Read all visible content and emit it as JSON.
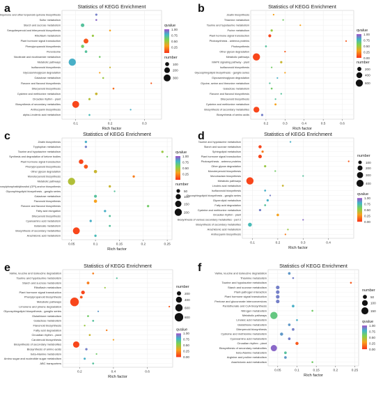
{
  "chart_data": [
    {
      "panel": "a",
      "type": "scatter",
      "title": "Statistics of KEGG Enrichment",
      "xlabel": "Rich factor",
      "xticks": [
        0.1,
        0.2,
        0.3
      ],
      "xlim": [
        0.06,
        0.35
      ],
      "legend_q_title": "qvalue",
      "legend_q_ticks": [
        "1.00",
        "0.75",
        "0.50",
        "0.25"
      ],
      "legend_n_title": "number",
      "legend_n_ticks": [
        "100",
        "200",
        "300"
      ],
      "categories": [
        "Ubiquinone and other terpenoid-quinone biosynthesis",
        "Sulfur metabolism",
        "Starch and sucrose metabolism",
        "Sesquiterpenoid and triterpenoid biosynthesis",
        "Riboflavin metabolism",
        "Plant hormone signal transduction",
        "Phenylpropanoid biosynthesis",
        "Peroxisome",
        "Nicotinate and nicotinamide metabolism",
        "Metabolic pathways",
        "Isoflavonoid biosynthesis",
        "Glycosaminoglycan degradation",
        "Galactose metabolism",
        "Flavone and flavonol biosynthesis",
        "Diterpenoid biosynthesis",
        "Cysteine and methionine metabolism",
        "Circadian rhythm - plant",
        "Biosynthesis of secondary metabolites",
        "Anthocyanin biosynthesis",
        "alpha-Linolenic acid metabolism"
      ],
      "x": [
        0.16,
        0.16,
        0.12,
        0.2,
        0.15,
        0.13,
        0.12,
        0.13,
        0.17,
        0.09,
        0.2,
        0.17,
        0.18,
        0.32,
        0.21,
        0.16,
        0.14,
        0.1,
        0.26,
        0.14
      ],
      "q": [
        0.9,
        0.95,
        0.7,
        0.3,
        0.5,
        0.1,
        0.6,
        0.7,
        0.6,
        0.8,
        0.4,
        0.3,
        0.5,
        0.1,
        0.15,
        0.4,
        0.45,
        0.05,
        0.8,
        0.75
      ],
      "n": [
        30,
        20,
        80,
        20,
        30,
        150,
        60,
        40,
        20,
        330,
        10,
        15,
        20,
        10,
        20,
        40,
        30,
        300,
        10,
        20
      ]
    },
    {
      "panel": "b",
      "type": "scatter",
      "title": "Statistics of KEGG Enrichment",
      "xlabel": "Rich factor",
      "xticks": [
        0.2,
        0.3,
        0.4,
        0.5,
        0.6
      ],
      "xlim": [
        0.12,
        0.66
      ],
      "legend_q_title": "qvalue",
      "legend_q_ticks": [
        "1.00",
        "0.75",
        "0.50",
        "0.25",
        "0.00"
      ],
      "legend_n_title": "number",
      "legend_n_ticks": [
        "200",
        "400",
        "600"
      ],
      "categories": [
        "Zeatin biosynthesis",
        "Thiamine metabolism",
        "Taurine and hypotaurine metabolism",
        "Purine metabolism",
        "Plant hormone signal transduction",
        "Photosynthesis - antenna proteins",
        "Photosynthesis",
        "Other glycan degradation",
        "Metabolic pathways",
        "MAPK signaling pathway - plant",
        "Isoflavonoid biosynthesis",
        "Glycosphingolipid biosynthesis - ganglio series",
        "Glycosaminoglycan degradation",
        "Glycine, serine and threonine metabolism",
        "Galactose metabolism",
        "Flavone and flavonol biosynthesis",
        "Diterpenoid biosynthesis",
        "Cysteine and methionine metabolism",
        "Biosynthesis of secondary metabolites",
        "Biosynthesis of amino acids"
      ],
      "x": [
        0.24,
        0.29,
        0.38,
        0.23,
        0.22,
        0.62,
        0.2,
        0.3,
        0.15,
        0.28,
        0.23,
        0.3,
        0.26,
        0.22,
        0.23,
        0.28,
        0.25,
        0.25,
        0.15,
        0.18
      ],
      "q": [
        0.3,
        0.6,
        0.3,
        0.5,
        0.05,
        0.1,
        0.7,
        0.1,
        0.05,
        0.4,
        0.6,
        0.3,
        0.8,
        0.7,
        0.6,
        0.7,
        0.7,
        0.3,
        0.05,
        0.9
      ],
      "n": [
        30,
        20,
        20,
        60,
        100,
        20,
        40,
        20,
        620,
        60,
        15,
        20,
        20,
        30,
        40,
        30,
        20,
        50,
        400,
        60
      ]
    },
    {
      "panel": "c",
      "type": "scatter",
      "title": "Statistics of KEGG Enrichment",
      "xlabel": "Rich factor",
      "xticks": [
        0.05,
        0.1,
        0.15,
        0.2,
        0.25
      ],
      "xlim": [
        0.03,
        0.26
      ],
      "legend_q_title": "qvalue",
      "legend_q_ticks": [
        "1.00",
        "0.75",
        "0.50",
        "0.25"
      ],
      "legend_n_title": "number",
      "legend_n_ticks": [
        "50",
        "100",
        "150",
        "200"
      ],
      "categories": [
        "Zeatin biosynthesis",
        "Tryptophan metabolism",
        "Taurine and hypotaurine metabolism",
        "Synthesis and degradation of ketone bodies",
        "Plant hormone signal transduction",
        "Phenylpropanoid biosynthesis",
        "Other glycan degradation",
        "Monoterpenoid biosynthesis",
        "Metabolic pathways",
        "Glycosylphosphatidylinositol (GPI)-anchor biosynthesis",
        "Glycosphingolipid biosynthesis - ganglio series",
        "Galactose metabolism",
        "Flavonoid biosynthesis",
        "Flavone and flavonol biosynthesis",
        "Fatty acid elongation",
        "Diterpenoid biosynthesis",
        "Cyanoamino acid metabolism",
        "Butanoate metabolism",
        "Biosynthesis of secondary metabolites",
        "Arachidonic acid metabolism"
      ],
      "x": [
        0.08,
        0.08,
        0.24,
        0.25,
        0.07,
        0.08,
        0.1,
        0.18,
        0.05,
        0.13,
        0.14,
        0.1,
        0.1,
        0.21,
        0.12,
        0.13,
        0.09,
        0.13,
        0.06,
        0.1
      ],
      "q": [
        0.8,
        0.9,
        0.5,
        0.6,
        0.05,
        0.1,
        0.4,
        0.2,
        0.45,
        0.4,
        0.7,
        0.7,
        0.3,
        0.6,
        0.8,
        0.7,
        0.8,
        0.7,
        0.05,
        0.75
      ],
      "n": [
        20,
        20,
        20,
        10,
        80,
        60,
        40,
        20,
        200,
        20,
        10,
        30,
        40,
        20,
        20,
        15,
        20,
        15,
        180,
        20
      ]
    },
    {
      "panel": "d",
      "type": "scatter",
      "title": "Statistics of KEGG Enrichment",
      "xlabel": "Rich factor",
      "xticks": [
        0.1,
        0.2,
        0.3,
        0.4
      ],
      "xlim": [
        0.06,
        0.5
      ],
      "legend_n_title": "number",
      "legend_n_ticks": [
        "100",
        "200",
        "300",
        "400"
      ],
      "legend_q_title": "qvalue",
      "legend_q_ticks": [
        "1.00",
        "0.75",
        "0.50",
        "0.25",
        "0.00"
      ],
      "categories": [
        "Taurine and hypotaurine metabolism",
        "Starch and sucrose metabolism",
        "Sphingolipid metabolism",
        "Plant hormone signal transduction",
        "Photosynthesis - antenna proteins",
        "Other glycan degradation",
        "Monoterpenoid biosynthesis",
        "Monobactam biosynthesis",
        "Metabolic pathways",
        "Linoleic acid metabolism",
        "Isoflavonoid biosynthesis",
        "Glycosphingolipid biosynthesis - ganglio series",
        "Glycerolipid metabolism",
        "Fatty acid degradation",
        "Cysteine and methionine metabolism",
        "Circadian rhythm - plant",
        "Biosynthesis of various secondary metabolites - part 2",
        "Biosynthesis of secondary metabolites",
        "Arachidonic acid metabolism",
        "Anthocyanin biosynthesis"
      ],
      "x": [
        0.25,
        0.13,
        0.14,
        0.13,
        0.48,
        0.15,
        0.19,
        0.3,
        0.09,
        0.22,
        0.15,
        0.17,
        0.16,
        0.15,
        0.13,
        0.2,
        0.3,
        0.09,
        0.24,
        0.23
      ],
      "q": [
        0.8,
        0.05,
        0.2,
        0.05,
        0.1,
        0.5,
        0.6,
        0.7,
        0.05,
        0.4,
        0.8,
        0.9,
        0.8,
        0.7,
        0.9,
        0.3,
        0.95,
        0.75,
        0.5,
        0.2
      ],
      "n": [
        20,
        80,
        40,
        100,
        20,
        40,
        20,
        15,
        420,
        30,
        30,
        20,
        40,
        30,
        40,
        50,
        10,
        120,
        20,
        15
      ]
    },
    {
      "panel": "e",
      "type": "scatter",
      "title": "Statistics of KEGG Enrichment",
      "xlabel": "Rich factor",
      "xticks": [
        0.2,
        0.4,
        0.6
      ],
      "xlim": [
        0.1,
        0.75
      ],
      "legend_n_title": "number",
      "legend_n_ticks": [
        "200",
        "400",
        "600",
        "800"
      ],
      "legend_q_title": "qvalue",
      "legend_q_ticks": [
        "1.00",
        "0.75",
        "0.50",
        "0.25",
        "0.00"
      ],
      "categories": [
        "Valine, leucine and isoleucine degradation",
        "Taurine and hypotaurine metabolism",
        "Starch and sucrose metabolism",
        "Riboflavin metabolism",
        "Plant hormone signal transduction",
        "Phenylpropanoid biosynthesis",
        "Metabolic pathways",
        "Limonene and pinene degradation",
        "Glycosphingolipid biosynthesis - ganglio series",
        "Glutathione metabolism",
        "Galactose metabolism",
        "Flavonoid biosynthesis",
        "Fatty acid degradation",
        "Circadian rhythm - plant",
        "Carotenoid biosynthesis",
        "Biosynthesis of secondary metabolites",
        "Biosynthesis of amino acids",
        "beta-Alanine metabolism",
        "Amino sugar and nucleotide sugar metabolism",
        "ABC transporters"
      ],
      "x": [
        0.28,
        0.42,
        0.25,
        0.35,
        0.22,
        0.21,
        0.17,
        0.73,
        0.31,
        0.25,
        0.28,
        0.23,
        0.36,
        0.26,
        0.4,
        0.18,
        0.24,
        0.3,
        0.23,
        0.28
      ],
      "q": [
        0.2,
        0.7,
        0.2,
        0.5,
        0.05,
        0.1,
        0.05,
        0.1,
        0.85,
        0.6,
        0.7,
        0.5,
        0.2,
        0.4,
        0.3,
        0.05,
        0.9,
        0.6,
        0.8,
        0.7
      ],
      "n": [
        40,
        20,
        80,
        20,
        150,
        80,
        830,
        10,
        20,
        40,
        40,
        30,
        30,
        40,
        20,
        450,
        60,
        20,
        50,
        40
      ]
    },
    {
      "panel": "f",
      "type": "scatter",
      "title": "Statistics of KEGG Enrichment",
      "xlabel": "Rich factor",
      "xticks": [
        0.05,
        0.1,
        0.15,
        0.2,
        0.25
      ],
      "xlim": [
        0.025,
        0.26
      ],
      "legend_n_title": "number",
      "legend_n_ticks": [
        "50",
        "100",
        "150"
      ],
      "legend_q_title": "qvalue",
      "legend_q_ticks": [
        "1.00",
        "0.75",
        "0.50",
        "0.25",
        "0.00"
      ],
      "categories": [
        "Valine, leucine and isoleucine degradation",
        "Thiamine metabolism",
        "Taurine and hypotaurine metabolism",
        "Starch and sucrose metabolism",
        "Plant-pathogen interaction",
        "Plant hormone signal transduction",
        "Pentose and glucuronate interconversions",
        "Pantothenate and CoA biosynthesis",
        "Nitrogen metabolism",
        "Metabolic pathways",
        "Linoleic acid metabolism",
        "Glutathione metabolism",
        "Diterpenoid biosynthesis",
        "Cysteine and methionine metabolism",
        "Cyanoamino acid metabolism",
        "Circadian rhythm - plant",
        "Biosynthesis of secondary metabolites",
        "beta-Alanine metabolism",
        "Arginine and proline metabolism",
        "Arachidonic acid metabolism"
      ],
      "x": [
        0.08,
        0.09,
        0.24,
        0.05,
        0.05,
        0.05,
        0.05,
        0.09,
        0.14,
        0.04,
        0.1,
        0.08,
        0.09,
        0.06,
        0.08,
        0.1,
        0.04,
        0.07,
        0.07,
        0.14
      ],
      "q": [
        0.85,
        0.9,
        0.1,
        0.9,
        0.9,
        0.9,
        0.9,
        0.8,
        0.6,
        0.65,
        0.8,
        0.85,
        0.9,
        0.85,
        0.9,
        0.1,
        0.95,
        0.7,
        0.85,
        0.6
      ],
      "n": [
        20,
        10,
        10,
        40,
        40,
        40,
        40,
        20,
        10,
        160,
        10,
        20,
        20,
        30,
        20,
        30,
        120,
        20,
        20,
        10
      ]
    }
  ]
}
